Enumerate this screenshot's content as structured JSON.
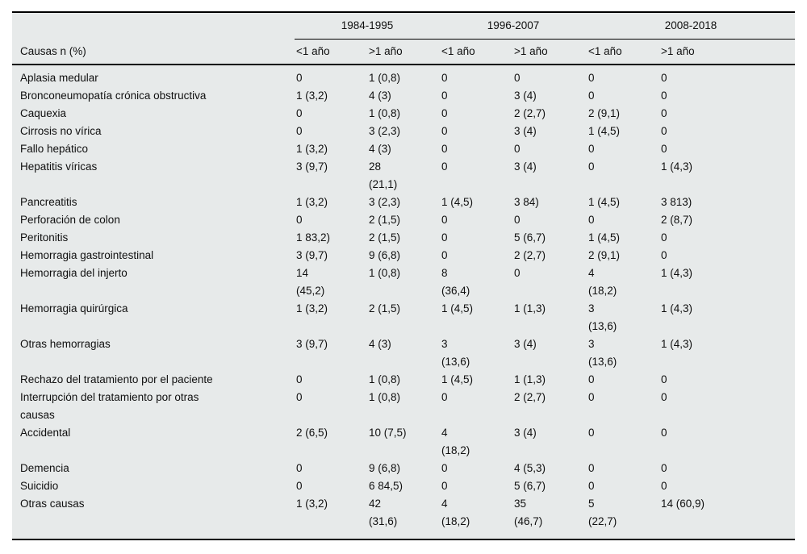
{
  "table": {
    "corner_label": "Causas n (%)",
    "period_groups": [
      "1984-1995",
      "1996-2007",
      "2008-2018"
    ],
    "sub_headers": [
      "<1 año",
      ">1 año",
      "<1 año",
      ">1 año",
      "<1 año",
      ">1 año"
    ],
    "rows": [
      {
        "label": "Aplasia medular",
        "cells": [
          "0",
          "1 (0,8)",
          "0",
          "0",
          "0",
          "0"
        ]
      },
      {
        "label": "Bronconeumopatía crónica obstructiva",
        "cells": [
          "1 (3,2)",
          "4 (3)",
          "0",
          "3 (4)",
          "0",
          "0"
        ]
      },
      {
        "label": "Caquexia",
        "cells": [
          "0",
          "1 (0,8)",
          "0",
          "2 (2,7)",
          "2 (9,1)",
          "0"
        ]
      },
      {
        "label": "Cirrosis no vírica",
        "cells": [
          "0",
          "3 (2,3)",
          "0",
          "3 (4)",
          "1 (4,5)",
          "0"
        ]
      },
      {
        "label": "Fallo hepático",
        "cells": [
          "1 (3,2)",
          "4 (3)",
          "0",
          "0",
          "0",
          "0"
        ]
      },
      {
        "label": "Hepatitis víricas",
        "cells": [
          "3 (9,7)",
          "28\n(21,1)",
          "0",
          "3 (4)",
          "0",
          "1 (4,3)"
        ]
      },
      {
        "label": "Pancreatitis",
        "cells": [
          "1 (3,2)",
          "3 (2,3)",
          "1 (4,5)",
          "3 84)",
          "1 (4,5)",
          "3 813)"
        ]
      },
      {
        "label": "Perforación de colon",
        "cells": [
          "0",
          "2 (1,5)",
          "0",
          "0",
          "0",
          "2 (8,7)"
        ]
      },
      {
        "label": "Peritonitis",
        "cells": [
          "1 83,2)",
          "2 (1,5)",
          "0",
          "5 (6,7)",
          "1 (4,5)",
          "0"
        ]
      },
      {
        "label": "Hemorragia gastrointestinal",
        "cells": [
          "3 (9,7)",
          "9 (6,8)",
          "0",
          "2 (2,7)",
          "2 (9,1)",
          "0"
        ]
      },
      {
        "label": "Hemorragia del injerto",
        "cells": [
          "14\n(45,2)",
          "1 (0,8)",
          "8\n(36,4)",
          "0",
          "4\n(18,2)",
          "1 (4,3)"
        ]
      },
      {
        "label": "Hemorragia quirúrgica",
        "cells": [
          "1 (3,2)",
          "2 (1,5)",
          "1 (4,5)",
          "1 (1,3)",
          "3\n(13,6)",
          "1 (4,3)"
        ]
      },
      {
        "label": "Otras hemorragias",
        "cells": [
          "3 (9,7)",
          "4 (3)",
          "3\n(13,6)",
          "3 (4)",
          "3\n(13,6)",
          "1 (4,3)"
        ]
      },
      {
        "label": "Rechazo del tratamiento por el paciente",
        "cells": [
          "0",
          "1 (0,8)",
          "1 (4,5)",
          "1 (1,3)",
          "0",
          "0"
        ]
      },
      {
        "label": "Interrupción del tratamiento por otras\ncausas",
        "cells": [
          "0",
          "1 (0,8)",
          "0",
          "2 (2,7)",
          "0",
          "0"
        ]
      },
      {
        "label": "Accidental",
        "cells": [
          "2 (6,5)",
          "10 (7,5)",
          "4\n(18,2)",
          "3 (4)",
          "0",
          "0"
        ]
      },
      {
        "label": "Demencia",
        "cells": [
          "0",
          "9 (6,8)",
          "0",
          "4 (5,3)",
          "0",
          "0"
        ]
      },
      {
        "label": "Suicidio",
        "cells": [
          "0",
          "6 84,5)",
          "0",
          "5 (6,7)",
          "0",
          "0"
        ]
      },
      {
        "label": "Otras causas",
        "cells": [
          "1 (3,2)",
          "42\n(31,6)",
          "4\n(18,2)",
          "35\n(46,7)",
          "5\n(22,7)",
          "14 (60,9)"
        ]
      }
    ],
    "colors": {
      "table_background": "#e7eaea",
      "page_background": "#ffffff",
      "rule": "#000000",
      "text": "#101010"
    }
  }
}
